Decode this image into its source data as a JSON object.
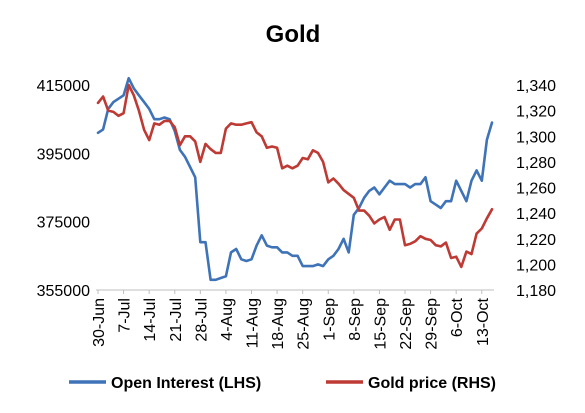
{
  "chart_data": {
    "type": "line",
    "title": "Gold",
    "x_tick_labels": [
      "30-Jun",
      "7-Jul",
      "14-Jul",
      "21-Jul",
      "28-Jul",
      "4-Aug",
      "11-Aug",
      "18-Aug",
      "25-Aug",
      "1-Sep",
      "8-Sep",
      "15-Sep",
      "22-Sep",
      "29-Sep",
      "6-Oct",
      "13-Oct"
    ],
    "y_left": {
      "ticks": [
        "355000",
        "375000",
        "395000",
        "415000"
      ],
      "range": [
        355000,
        415000
      ]
    },
    "y_right": {
      "ticks": [
        "1,180",
        "1,200",
        "1,220",
        "1,240",
        "1,260",
        "1,280",
        "1,300",
        "1,320",
        "1,340"
      ],
      "range": [
        1180,
        1340
      ]
    },
    "grid": false,
    "legend_position": "bottom",
    "series": [
      {
        "name": "Open Interest (LHS)",
        "axis": "left",
        "color": "#3F73B8",
        "x": [
          "30-Jun",
          "1-Jul",
          "2-Jul",
          "3-Jul",
          "4-Jul",
          "7-Jul",
          "8-Jul",
          "9-Jul",
          "10-Jul",
          "11-Jul",
          "14-Jul",
          "15-Jul",
          "16-Jul",
          "17-Jul",
          "18-Jul",
          "21-Jul",
          "22-Jul",
          "23-Jul",
          "24-Jul",
          "25-Jul",
          "28-Jul",
          "29-Jul",
          "30-Jul",
          "31-Jul",
          "1-Aug",
          "4-Aug",
          "5-Aug",
          "6-Aug",
          "7-Aug",
          "8-Aug",
          "11-Aug",
          "12-Aug",
          "13-Aug",
          "14-Aug",
          "15-Aug",
          "18-Aug",
          "19-Aug",
          "20-Aug",
          "21-Aug",
          "22-Aug",
          "25-Aug",
          "26-Aug",
          "27-Aug",
          "28-Aug",
          "29-Aug",
          "1-Sep",
          "2-Sep",
          "3-Sep",
          "4-Sep",
          "5-Sep",
          "8-Sep",
          "9-Sep",
          "10-Sep",
          "11-Sep",
          "12-Sep",
          "15-Sep",
          "16-Sep",
          "17-Sep",
          "18-Sep",
          "19-Sep",
          "22-Sep",
          "23-Sep",
          "24-Sep",
          "25-Sep",
          "26-Sep",
          "29-Sep",
          "30-Sep",
          "1-Oct",
          "2-Oct",
          "3-Oct",
          "6-Oct",
          "7-Oct",
          "8-Oct",
          "9-Oct",
          "10-Oct",
          "13-Oct",
          "14-Oct",
          "15-Oct"
        ],
        "values": [
          401000,
          402000,
          408000,
          410000,
          411000,
          412000,
          417000,
          414000,
          412000,
          410000,
          408000,
          405000,
          405000,
          405500,
          405000,
          401500,
          396000,
          394000,
          391000,
          388000,
          369000,
          369000,
          358000,
          358000,
          358500,
          359000,
          366000,
          367000,
          364000,
          363500,
          364000,
          368000,
          371000,
          368000,
          367500,
          367500,
          366000,
          366000,
          365000,
          365000,
          362000,
          362000,
          362000,
          362500,
          362000,
          364000,
          365000,
          367000,
          370000,
          366000,
          377000,
          379000,
          382000,
          384000,
          385000,
          383000,
          385000,
          387000,
          386000,
          386000,
          386000,
          385000,
          386000,
          386000,
          388000,
          381000,
          380000,
          379000,
          381000,
          381000,
          387000,
          384000,
          381000,
          387000,
          390000,
          387000,
          399000,
          404000
        ]
      },
      {
        "name": "Gold price (RHS)",
        "axis": "right",
        "color": "#BE3A34",
        "x": [
          "30-Jun",
          "1-Jul",
          "2-Jul",
          "3-Jul",
          "4-Jul",
          "7-Jul",
          "8-Jul",
          "9-Jul",
          "10-Jul",
          "11-Jul",
          "14-Jul",
          "15-Jul",
          "16-Jul",
          "17-Jul",
          "18-Jul",
          "21-Jul",
          "22-Jul",
          "23-Jul",
          "24-Jul",
          "25-Jul",
          "28-Jul",
          "29-Jul",
          "30-Jul",
          "31-Jul",
          "1-Aug",
          "4-Aug",
          "5-Aug",
          "6-Aug",
          "7-Aug",
          "8-Aug",
          "11-Aug",
          "12-Aug",
          "13-Aug",
          "14-Aug",
          "15-Aug",
          "18-Aug",
          "19-Aug",
          "20-Aug",
          "21-Aug",
          "22-Aug",
          "25-Aug",
          "26-Aug",
          "27-Aug",
          "28-Aug",
          "29-Aug",
          "1-Sep",
          "2-Sep",
          "3-Sep",
          "4-Sep",
          "5-Sep",
          "8-Sep",
          "9-Sep",
          "10-Sep",
          "11-Sep",
          "12-Sep",
          "15-Sep",
          "16-Sep",
          "17-Sep",
          "18-Sep",
          "19-Sep",
          "22-Sep",
          "23-Sep",
          "24-Sep",
          "25-Sep",
          "26-Sep",
          "29-Sep",
          "30-Sep",
          "1-Oct",
          "2-Oct",
          "3-Oct",
          "6-Oct",
          "7-Oct",
          "8-Oct",
          "9-Oct",
          "10-Oct",
          "13-Oct",
          "14-Oct",
          "15-Oct"
        ],
        "values": [
          1326,
          1331,
          1320,
          1319,
          1316,
          1318,
          1340,
          1332,
          1320,
          1305,
          1297,
          1310,
          1309,
          1312,
          1312,
          1307,
          1293,
          1300,
          1300,
          1296,
          1280,
          1294,
          1290,
          1287,
          1287,
          1306,
          1310,
          1309,
          1309,
          1310,
          1311,
          1303,
          1300,
          1291,
          1292,
          1291,
          1275,
          1277,
          1275,
          1277,
          1283,
          1282,
          1289,
          1287,
          1280,
          1264,
          1267,
          1263,
          1258,
          1255,
          1252,
          1242,
          1242,
          1238,
          1232,
          1235,
          1237,
          1227,
          1235,
          1235,
          1215,
          1216,
          1218,
          1222,
          1220,
          1219,
          1215,
          1214,
          1217,
          1205,
          1206,
          1198,
          1210,
          1208,
          1224,
          1228,
          1236,
          1243
        ]
      }
    ]
  }
}
